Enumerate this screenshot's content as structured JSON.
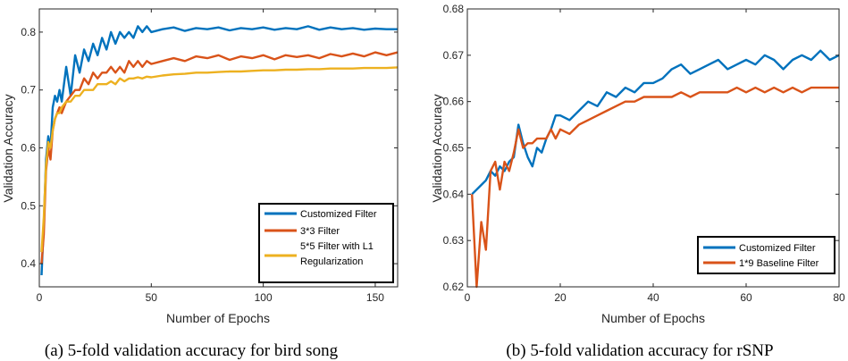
{
  "chart_data": [
    {
      "type": "line",
      "caption": "(a) 5-fold validation accuracy for bird song",
      "xlabel": "Number of Epochs",
      "ylabel": "Validation Accuracy",
      "xlim": [
        0,
        160
      ],
      "ylim": [
        0.36,
        0.84
      ],
      "xticks": [
        0,
        50,
        100,
        150
      ],
      "yticks": [
        0.4,
        0.5,
        0.6,
        0.7,
        0.8
      ],
      "xtick_labels": [
        "0",
        "50",
        "100",
        "150"
      ],
      "ytick_labels": [
        "0.4",
        "0.5",
        "0.6",
        "0.7",
        "0.8"
      ],
      "legend_position": "bottom-right",
      "x": [
        1,
        2,
        3,
        4,
        5,
        6,
        7,
        8,
        9,
        10,
        12,
        14,
        16,
        18,
        20,
        22,
        24,
        26,
        28,
        30,
        32,
        34,
        36,
        38,
        40,
        42,
        44,
        46,
        48,
        50,
        55,
        60,
        65,
        70,
        75,
        80,
        85,
        90,
        95,
        100,
        105,
        110,
        115,
        120,
        125,
        130,
        135,
        140,
        145,
        150,
        155,
        160
      ],
      "series": [
        {
          "name": "Customized Filter",
          "color": "#0072BD",
          "values": [
            0.38,
            0.47,
            0.58,
            0.62,
            0.6,
            0.67,
            0.69,
            0.68,
            0.7,
            0.68,
            0.74,
            0.69,
            0.76,
            0.73,
            0.77,
            0.75,
            0.78,
            0.76,
            0.79,
            0.77,
            0.8,
            0.78,
            0.8,
            0.79,
            0.8,
            0.79,
            0.81,
            0.8,
            0.81,
            0.8,
            0.805,
            0.808,
            0.802,
            0.807,
            0.805,
            0.808,
            0.803,
            0.807,
            0.805,
            0.808,
            0.804,
            0.807,
            0.805,
            0.81,
            0.804,
            0.808,
            0.805,
            0.807,
            0.804,
            0.806,
            0.805,
            0.805
          ]
        },
        {
          "name": "3*3 Filter",
          "color": "#D95319",
          "values": [
            0.4,
            0.45,
            0.56,
            0.6,
            0.58,
            0.63,
            0.65,
            0.66,
            0.67,
            0.66,
            0.68,
            0.69,
            0.7,
            0.7,
            0.72,
            0.71,
            0.73,
            0.72,
            0.73,
            0.73,
            0.74,
            0.73,
            0.74,
            0.73,
            0.75,
            0.74,
            0.75,
            0.74,
            0.75,
            0.745,
            0.75,
            0.755,
            0.75,
            0.758,
            0.755,
            0.76,
            0.752,
            0.758,
            0.755,
            0.76,
            0.753,
            0.76,
            0.757,
            0.76,
            0.755,
            0.762,
            0.758,
            0.763,
            0.758,
            0.765,
            0.76,
            0.765
          ]
        },
        {
          "name": "5*5 Filter with L1 Regularization",
          "color": "#EDB120",
          "values": [
            0.42,
            0.48,
            0.57,
            0.61,
            0.6,
            0.63,
            0.65,
            0.66,
            0.66,
            0.67,
            0.68,
            0.68,
            0.69,
            0.69,
            0.7,
            0.7,
            0.7,
            0.71,
            0.71,
            0.71,
            0.715,
            0.71,
            0.72,
            0.715,
            0.72,
            0.72,
            0.722,
            0.72,
            0.723,
            0.722,
            0.725,
            0.727,
            0.728,
            0.73,
            0.73,
            0.731,
            0.732,
            0.732,
            0.733,
            0.734,
            0.734,
            0.735,
            0.735,
            0.736,
            0.736,
            0.737,
            0.737,
            0.737,
            0.738,
            0.738,
            0.738,
            0.739
          ]
        }
      ]
    },
    {
      "type": "line",
      "caption": "(b) 5-fold validation accuracy for rSNP",
      "xlabel": "Number of Epochs",
      "ylabel": "Validation Accuracy",
      "xlim": [
        0,
        80
      ],
      "ylim": [
        0.62,
        0.68
      ],
      "xticks": [
        0,
        20,
        40,
        60,
        80
      ],
      "yticks": [
        0.62,
        0.63,
        0.64,
        0.65,
        0.66,
        0.67,
        0.68
      ],
      "xtick_labels": [
        "0",
        "20",
        "40",
        "60",
        "80"
      ],
      "ytick_labels": [
        "0.62",
        "0.63",
        "0.64",
        "0.65",
        "0.66",
        "0.67",
        "0.68"
      ],
      "legend_position": "bottom-right",
      "x": [
        1,
        2,
        3,
        4,
        5,
        6,
        7,
        8,
        9,
        10,
        11,
        12,
        13,
        14,
        15,
        16,
        17,
        18,
        19,
        20,
        22,
        24,
        26,
        28,
        30,
        32,
        34,
        36,
        38,
        40,
        42,
        44,
        46,
        48,
        50,
        52,
        54,
        56,
        58,
        60,
        62,
        64,
        66,
        68,
        70,
        72,
        74,
        76,
        78,
        80
      ],
      "series": [
        {
          "name": "Customized Filter",
          "color": "#0072BD",
          "values": [
            0.64,
            0.641,
            0.642,
            0.643,
            0.645,
            0.644,
            0.646,
            0.645,
            0.647,
            0.648,
            0.655,
            0.651,
            0.648,
            0.646,
            0.65,
            0.649,
            0.652,
            0.654,
            0.657,
            0.657,
            0.656,
            0.658,
            0.66,
            0.659,
            0.662,
            0.661,
            0.663,
            0.662,
            0.664,
            0.664,
            0.665,
            0.667,
            0.668,
            0.666,
            0.667,
            0.668,
            0.669,
            0.667,
            0.668,
            0.669,
            0.668,
            0.67,
            0.669,
            0.667,
            0.669,
            0.67,
            0.669,
            0.671,
            0.669,
            0.67
          ]
        },
        {
          "name": "1*9 Baseline Filter",
          "color": "#D95319",
          "values": [
            0.64,
            0.62,
            0.634,
            0.628,
            0.645,
            0.647,
            0.641,
            0.647,
            0.645,
            0.649,
            0.654,
            0.65,
            0.651,
            0.651,
            0.652,
            0.652,
            0.652,
            0.654,
            0.652,
            0.654,
            0.653,
            0.655,
            0.656,
            0.657,
            0.658,
            0.659,
            0.66,
            0.66,
            0.661,
            0.661,
            0.661,
            0.661,
            0.662,
            0.661,
            0.662,
            0.662,
            0.662,
            0.662,
            0.663,
            0.662,
            0.663,
            0.662,
            0.663,
            0.662,
            0.663,
            0.662,
            0.663,
            0.663,
            0.663,
            0.663
          ]
        }
      ]
    }
  ]
}
